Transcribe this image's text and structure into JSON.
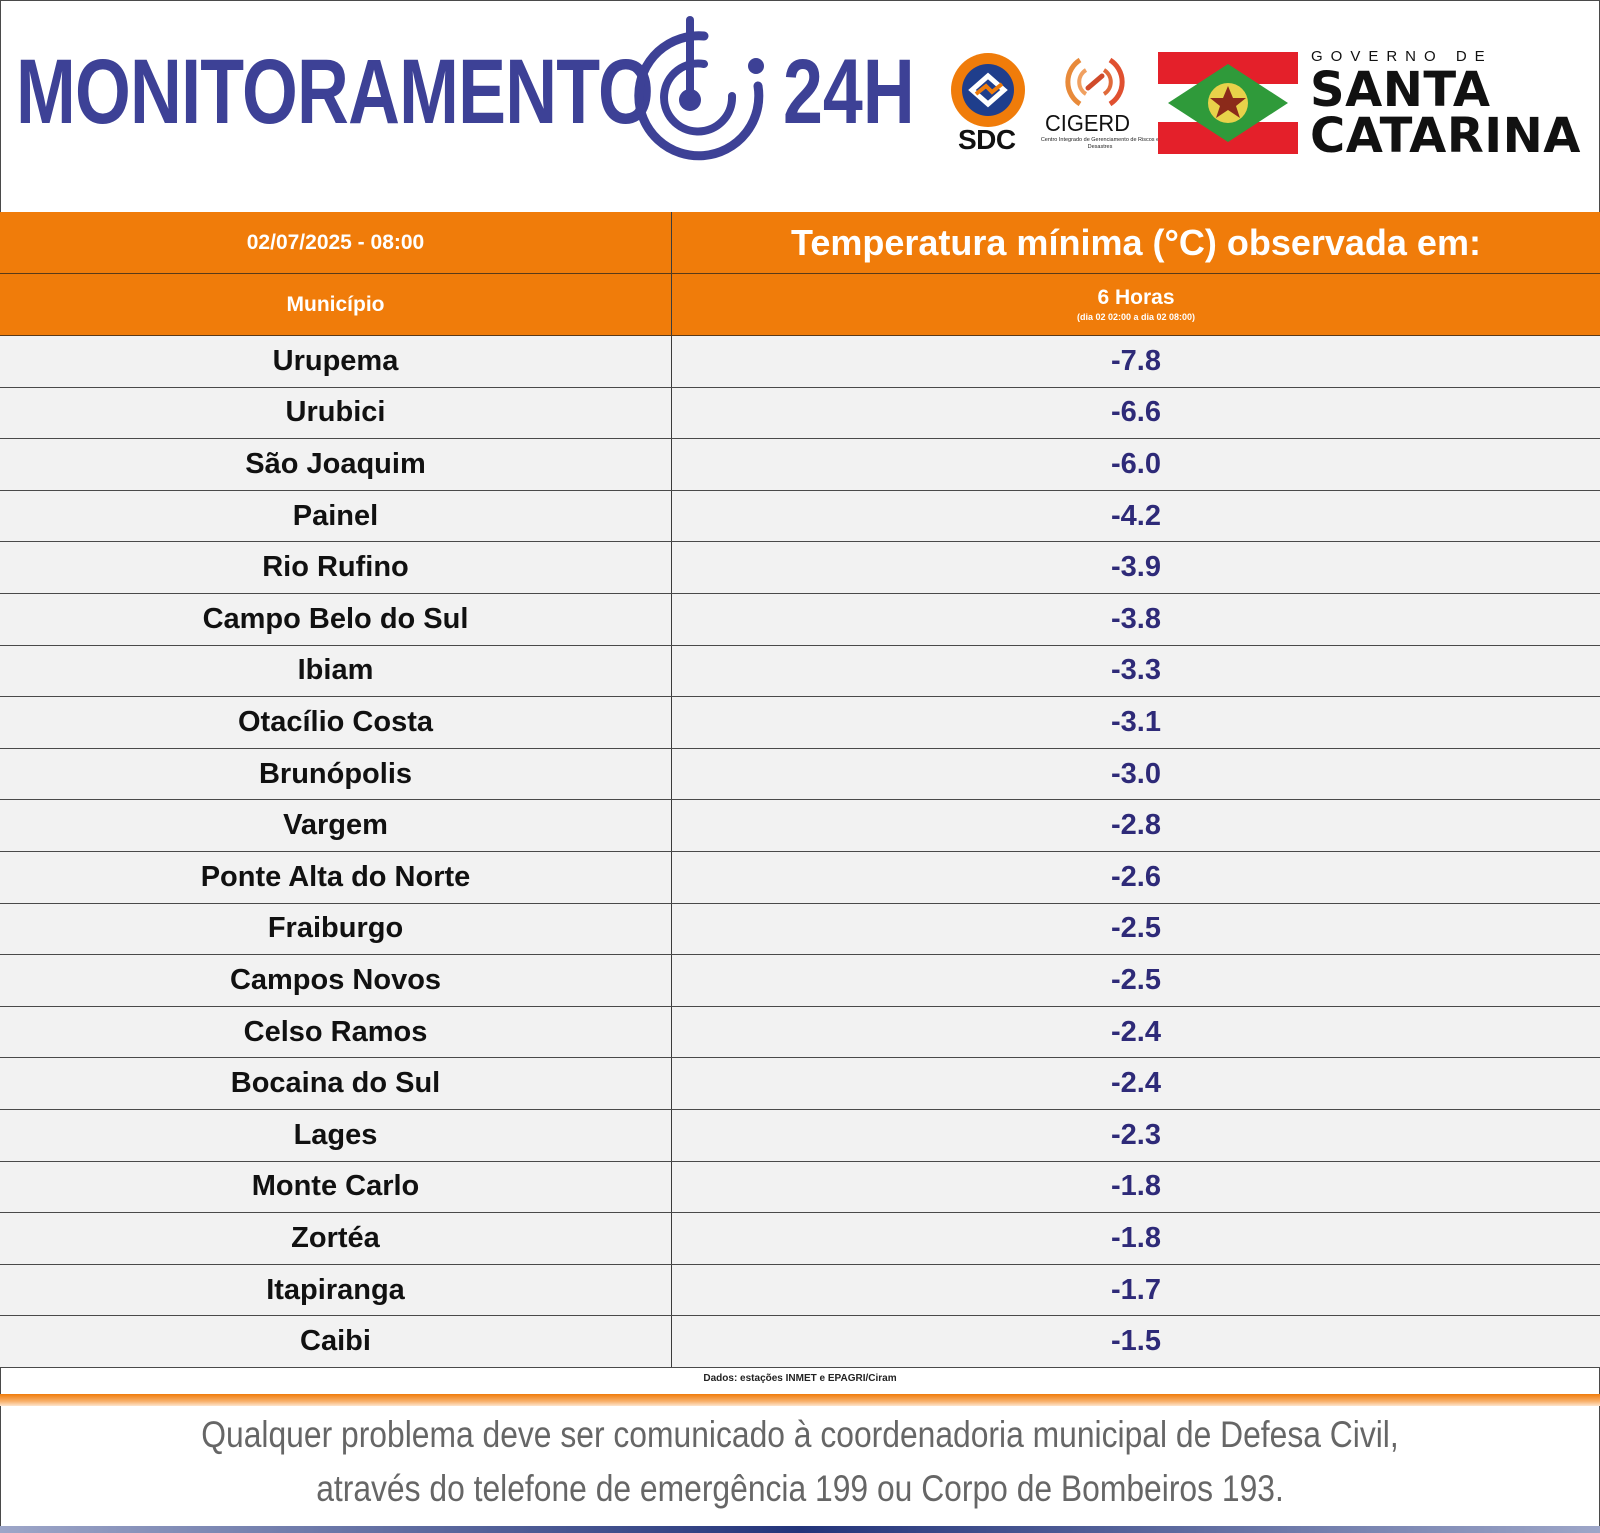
{
  "header": {
    "brand_word": "MONITORAMENTO",
    "brand_suffix": "24H",
    "sdc_label": "SDC",
    "cigerd_label": "CIGERD",
    "cigerd_subtitle": "Centro Integrado de Gerenciamento de Riscos e Desastres",
    "gov_small": "GOVERNO DE",
    "gov_line1": "SANTA",
    "gov_line2": "CATARINA",
    "colors": {
      "brand_blue": "#3d4196",
      "orange": "#f07c0a",
      "flag_red": "#e4202a",
      "flag_green": "#2f9a3a"
    }
  },
  "table": {
    "datetime": "02/07/2025 - 08:00",
    "title": "Temperatura mínima (°C) observada em:",
    "col_municipio": "Município",
    "col_period": "6 Horas",
    "col_period_sub": "(dia 02 02:00 a dia 02 08:00)",
    "rows": [
      {
        "municipio": "Urupema",
        "temp": "-7.8"
      },
      {
        "municipio": "Urubici",
        "temp": "-6.6"
      },
      {
        "municipio": "São Joaquim",
        "temp": "-6.0"
      },
      {
        "municipio": "Painel",
        "temp": "-4.2"
      },
      {
        "municipio": "Rio Rufino",
        "temp": "-3.9"
      },
      {
        "municipio": "Campo Belo do Sul",
        "temp": "-3.8"
      },
      {
        "municipio": "Ibiam",
        "temp": "-3.3"
      },
      {
        "municipio": "Otacílio Costa",
        "temp": "-3.1"
      },
      {
        "municipio": "Brunópolis",
        "temp": "-3.0"
      },
      {
        "municipio": "Vargem",
        "temp": "-2.8"
      },
      {
        "municipio": "Ponte Alta do Norte",
        "temp": "-2.6"
      },
      {
        "municipio": "Fraiburgo",
        "temp": "-2.5"
      },
      {
        "municipio": "Campos Novos",
        "temp": "-2.5"
      },
      {
        "municipio": "Celso Ramos",
        "temp": "-2.4"
      },
      {
        "municipio": "Bocaina do Sul",
        "temp": "-2.4"
      },
      {
        "municipio": "Lages",
        "temp": "-2.3"
      },
      {
        "municipio": "Monte Carlo",
        "temp": "-1.8"
      },
      {
        "municipio": "Zortéa",
        "temp": "-1.8"
      },
      {
        "municipio": "Itapiranga",
        "temp": "-1.7"
      },
      {
        "municipio": "Caibi",
        "temp": "-1.5"
      }
    ],
    "source": "Dados: estações INMET e EPAGRI/Ciram"
  },
  "footer": {
    "line1": "Qualquer problema deve ser comunicado à coordenadoria municipal de Defesa Civil,",
    "line2": "através do telefone de emergência 199 ou Corpo de Bombeiros 193."
  }
}
